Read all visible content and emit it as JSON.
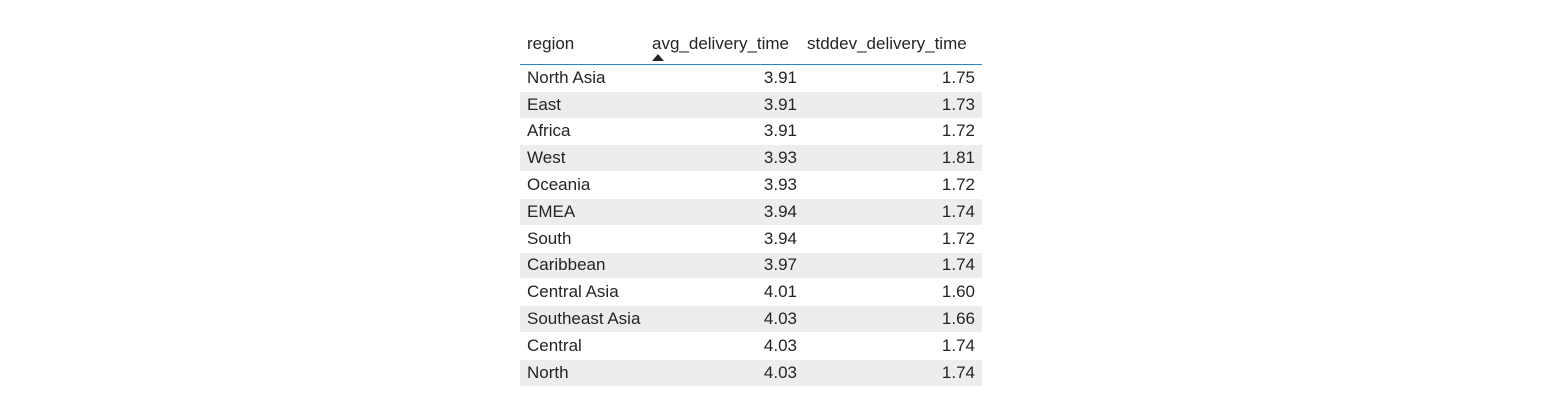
{
  "table": {
    "columns": [
      {
        "label": "region",
        "sorted": false
      },
      {
        "label": "avg_delivery_time",
        "sorted": "ascending"
      },
      {
        "label": "stddev_delivery_time",
        "sorted": false
      }
    ],
    "rows": [
      {
        "region": "North Asia",
        "avg": "3.91",
        "std": "1.75"
      },
      {
        "region": "East",
        "avg": "3.91",
        "std": "1.73"
      },
      {
        "region": "Africa",
        "avg": "3.91",
        "std": "1.72"
      },
      {
        "region": "West",
        "avg": "3.93",
        "std": "1.81"
      },
      {
        "region": "Oceania",
        "avg": "3.93",
        "std": "1.72"
      },
      {
        "region": "EMEA",
        "avg": "3.94",
        "std": "1.74"
      },
      {
        "region": "South",
        "avg": "3.94",
        "std": "1.72"
      },
      {
        "region": "Caribbean",
        "avg": "3.97",
        "std": "1.74"
      },
      {
        "region": "Central Asia",
        "avg": "4.01",
        "std": "1.60"
      },
      {
        "region": "Southeast Asia",
        "avg": "4.03",
        "std": "1.66"
      },
      {
        "region": "Central",
        "avg": "4.03",
        "std": "1.74"
      },
      {
        "region": "North",
        "avg": "4.03",
        "std": "1.74"
      }
    ]
  },
  "colors": {
    "header_rule": "#2e83c8",
    "alt_row": "#eeeded",
    "text": "#252423"
  },
  "icons": {
    "sort": "sort-ascending-icon"
  }
}
